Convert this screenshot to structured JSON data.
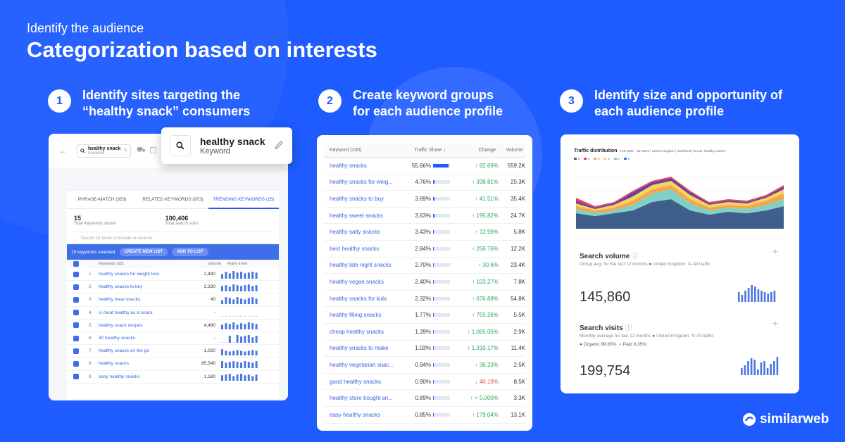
{
  "header": {
    "subtitle": "Identify the audience",
    "title": "Categorization based on interests"
  },
  "steps": [
    {
      "num": "1",
      "line1": "Identify sites targeting the",
      "line2": "“healthy snack” consumers"
    },
    {
      "num": "2",
      "line1": "Create keyword groups",
      "line2": "for each audience profile"
    },
    {
      "num": "3",
      "line1": "Identify size and opportunity of",
      "line2": "each audience profile"
    }
  ],
  "card1": {
    "topbar_keyword": "healthy snack",
    "topbar_type": "Keyword",
    "popup_keyword": "healthy snack",
    "popup_type": "Keyword",
    "tabs": [
      "PHRASE-MATCH (353)",
      "RELATED KEYWORDS (973)",
      "TRENDING KEYWORDS (15)"
    ],
    "stats": [
      {
        "value": "15",
        "label": "Total Keywords shown"
      },
      {
        "value": "100,406",
        "label": "Total search visits"
      }
    ],
    "search_placeholder": "Search for terms to include or exclude",
    "selected_text": "15 keywords selected",
    "create_list": "CREATE NEW LIST",
    "add_to_list": "ADD TO LIST",
    "columns": [
      "Keywords (15)",
      "Volume",
      "Yearly trend"
    ],
    "rows": [
      {
        "n": "1",
        "kw": "healthy snacks for weight loss",
        "vol": "2,490"
      },
      {
        "n": "2",
        "kw": "healthy snacks to buy",
        "vol": "3,330"
      },
      {
        "n": "3",
        "kw": "healthy meat snacks",
        "vol": "40"
      },
      {
        "n": "4",
        "kw": "is meat healthy as a snack",
        "vol": "-"
      },
      {
        "n": "5",
        "kw": "healthy snack recipes",
        "vol": "4,490"
      },
      {
        "n": "6",
        "kw": "40 healthy snacks",
        "vol": "-"
      },
      {
        "n": "7",
        "kw": "healthy snacks on the go",
        "vol": "1,020"
      },
      {
        "n": "8",
        "kw": "healthy snacks",
        "vol": "85,540"
      },
      {
        "n": "9",
        "kw": "easy healthy snacks",
        "vol": "1,180"
      }
    ]
  },
  "card2": {
    "columns": [
      "Keyword (100)",
      "Traffic Share",
      "Change",
      "Volume"
    ],
    "rows": [
      {
        "kw": "healthy snacks",
        "share": "55.66%",
        "share_frac": 0.9,
        "change": "92.69%",
        "dir": "up",
        "vol": "559.2K"
      },
      {
        "kw": "healthy snacks for weig...",
        "share": "4.76%",
        "share_frac": 0.08,
        "change": "338.81%",
        "dir": "up",
        "vol": "25.3K"
      },
      {
        "kw": "healthy snacks to buy",
        "share": "3.69%",
        "share_frac": 0.07,
        "change": "41.51%",
        "dir": "up",
        "vol": "35.4K"
      },
      {
        "kw": "healthy sweet snacks",
        "share": "3.63%",
        "share_frac": 0.07,
        "change": "195.82%",
        "dir": "up",
        "vol": "24.7K"
      },
      {
        "kw": "healthy salty snacks",
        "share": "3.43%",
        "share_frac": 0.06,
        "change": "12.99%",
        "dir": "up",
        "vol": "5.8K"
      },
      {
        "kw": "best healthy snacks",
        "share": "2.84%",
        "share_frac": 0.05,
        "change": "256.76%",
        "dir": "up",
        "vol": "12.2K"
      },
      {
        "kw": "healthy late night snacks",
        "share": "2.70%",
        "share_frac": 0.05,
        "change": "30.6%",
        "dir": "up",
        "vol": "23.4K"
      },
      {
        "kw": "healthy vegan snacks",
        "share": "2.40%",
        "share_frac": 0.04,
        "change": "103.27%",
        "dir": "up",
        "vol": "7.8K"
      },
      {
        "kw": "healthy snacks for kids",
        "share": "2.32%",
        "share_frac": 0.04,
        "change": "676.88%",
        "dir": "up",
        "vol": "54.8K"
      },
      {
        "kw": "healthy filling snacks",
        "share": "1.77%",
        "share_frac": 0.03,
        "change": "755.26%",
        "dir": "up",
        "vol": "5.5K"
      },
      {
        "kw": "cheap healthy snacks",
        "share": "1.39%",
        "share_frac": 0.03,
        "change": "1,065.06%",
        "dir": "up",
        "vol": "2.9K"
      },
      {
        "kw": "healthy snacks to make",
        "share": "1.03%",
        "share_frac": 0.02,
        "change": "1,310.17%",
        "dir": "up",
        "vol": "11.4K"
      },
      {
        "kw": "healthy vegetarian snac...",
        "share": "0.94%",
        "share_frac": 0.02,
        "change": "36.23%",
        "dir": "up",
        "vol": "2.5K"
      },
      {
        "kw": "good healthy snacks",
        "share": "0.90%",
        "share_frac": 0.02,
        "change": "40.19%",
        "dir": "down",
        "vol": "8.5K"
      },
      {
        "kw": "healthy store bought sn...",
        "share": "0.89%",
        "share_frac": 0.02,
        "change": "> 5,000%",
        "dir": "up",
        "vol": "3.3K"
      },
      {
        "kw": "easy healthy snacks",
        "share": "0.85%",
        "share_frac": 0.02,
        "change": "179.04%",
        "dir": "up",
        "vol": "13.1K"
      }
    ]
  },
  "card3": {
    "chart_title": "Traffic distribution",
    "chart_meta": "Feb 2020 - Jan 2021 | United Kingdom | undefined | Group \"healthy snacks\"",
    "search_volume": {
      "title": "Search volume",
      "sub": "Group avg. for the last 12 months",
      "country": "United Kingdom",
      "traffic": "All traffic",
      "value": "145,860"
    },
    "search_visits": {
      "title": "Search visits",
      "sub": "Monthly average for last 12 months",
      "country": "United Kingdom",
      "traffic": "All traffic",
      "organic": "Organic 99.65%",
      "paid": "Paid 0.35%",
      "value": "199,754"
    }
  },
  "colors": {
    "brand": "#1f5cff",
    "up": "#26a65b",
    "down": "#e04a4a"
  },
  "logo": {
    "text": "similarweb"
  }
}
